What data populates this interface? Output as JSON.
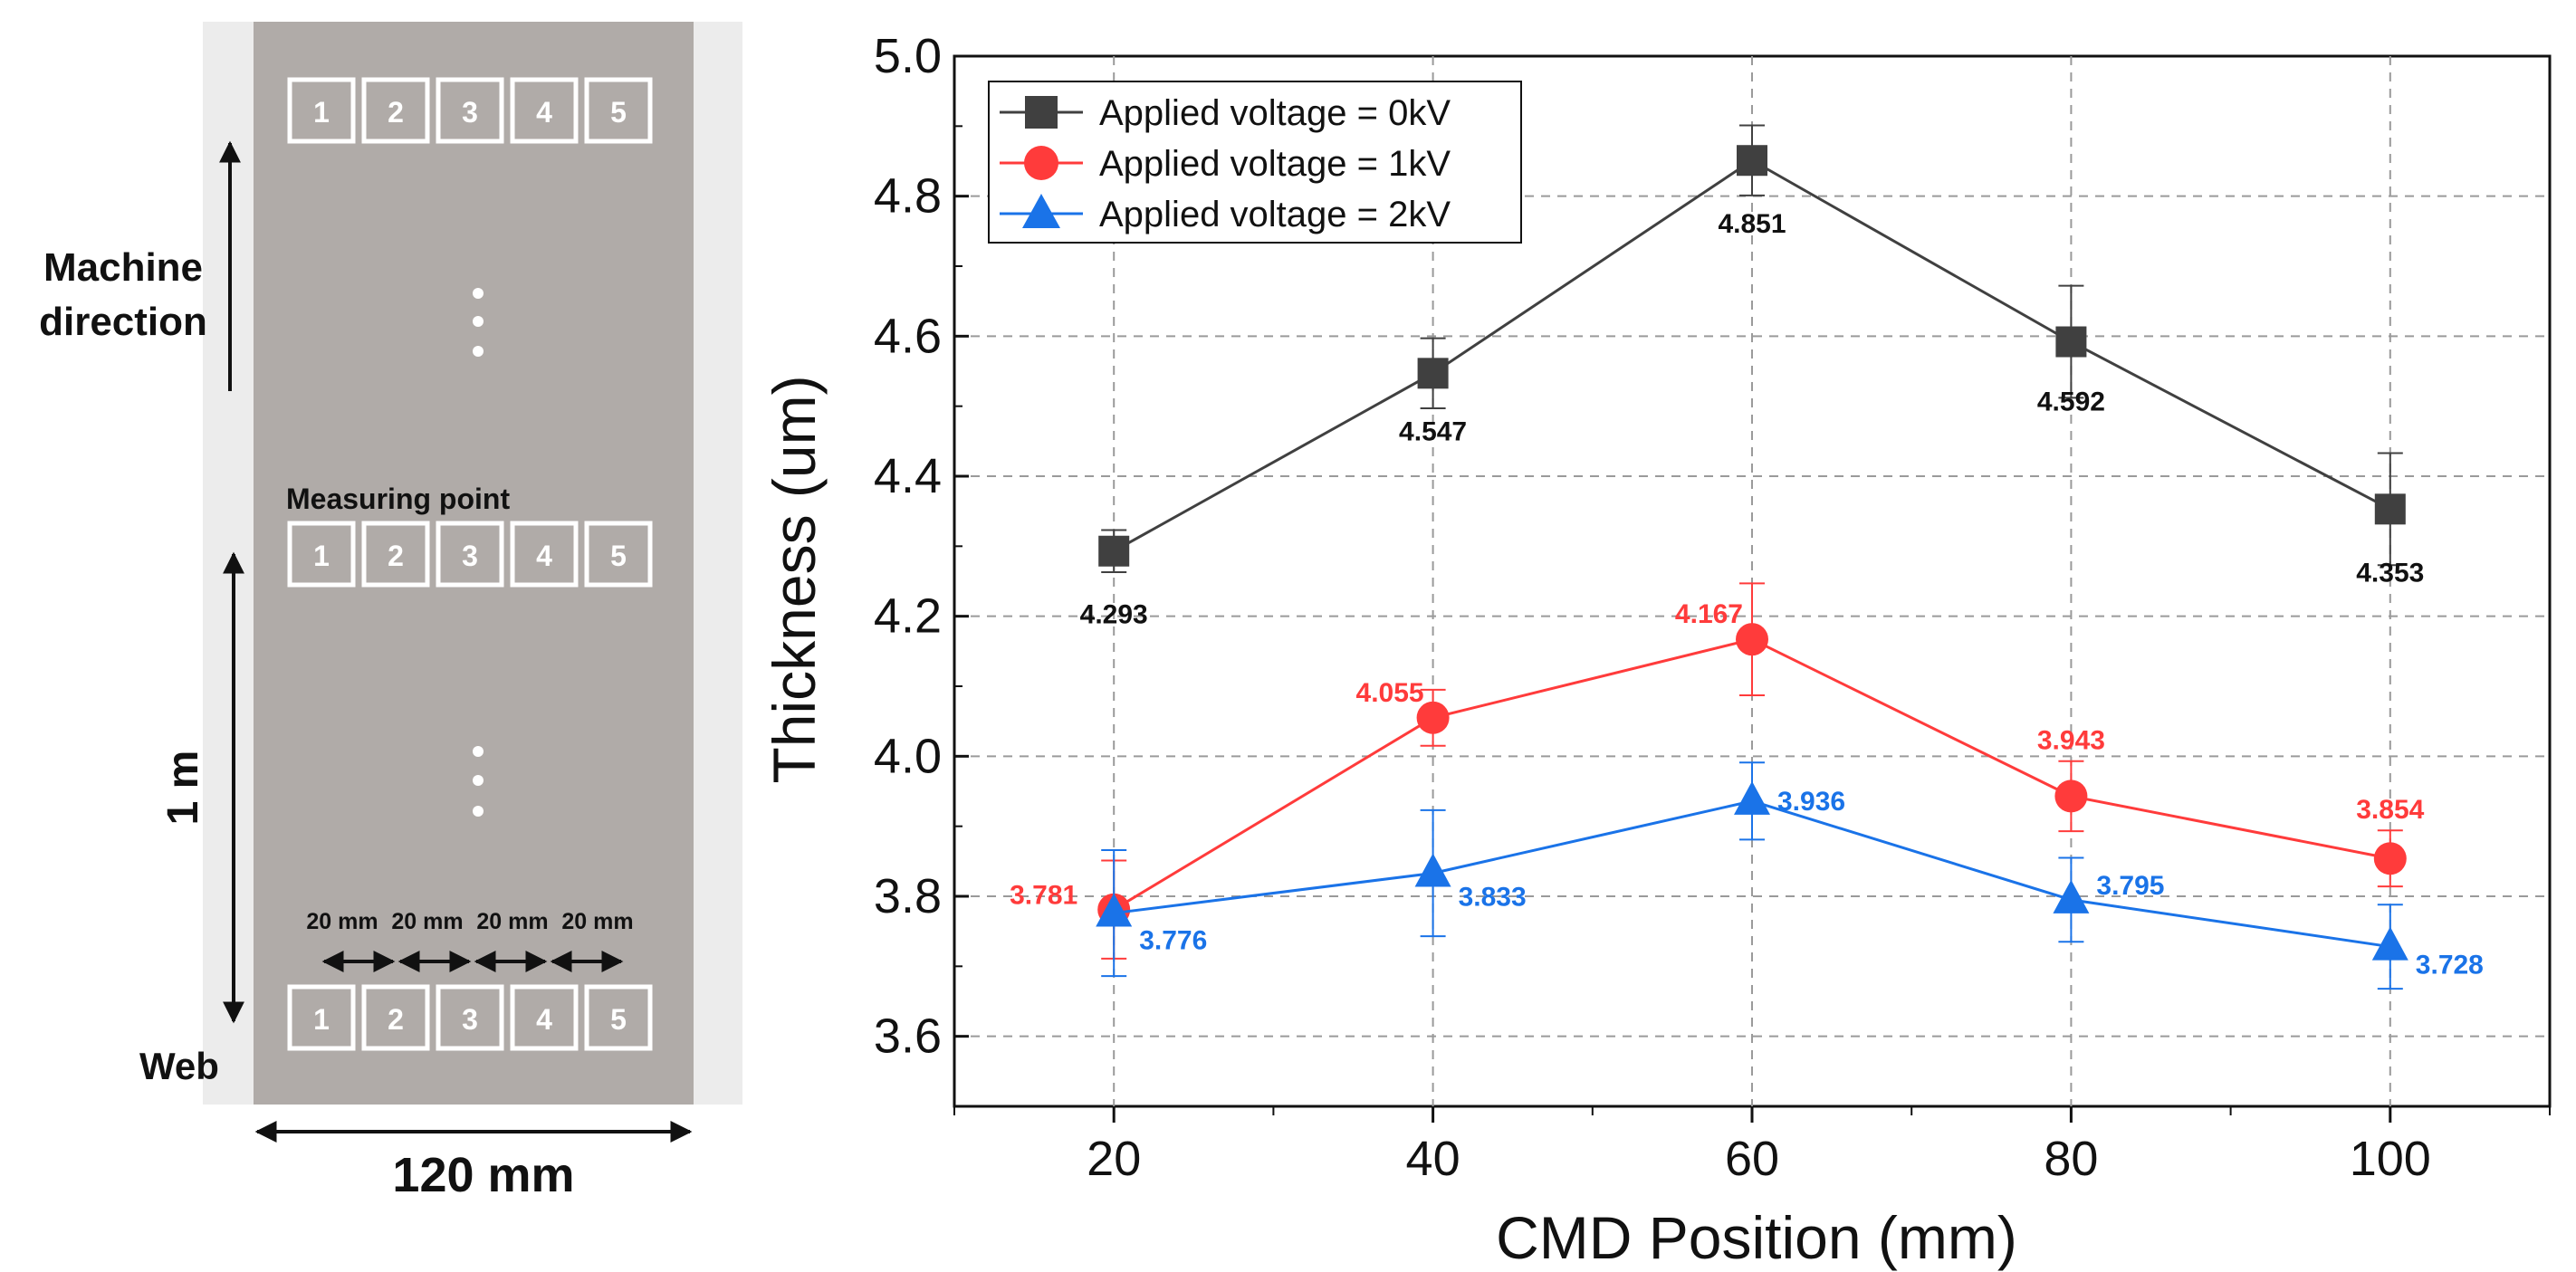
{
  "diagram": {
    "sample_width_label": "120 mm",
    "web_label": "Web",
    "machine_direction_label_line1": "Machine",
    "machine_direction_label_line2": "direction",
    "measuring_point_label": "Measuring point",
    "length_label": "1 m",
    "spacing_labels": [
      "20 mm",
      "20 mm",
      "20 mm",
      "20 mm"
    ],
    "point_numbers": [
      "1",
      "2",
      "3",
      "4",
      "5"
    ]
  },
  "chart_data": {
    "type": "line",
    "title": "",
    "xlabel": "CMD Position (mm)",
    "ylabel": "Thickness (um)",
    "x": [
      20,
      40,
      60,
      80,
      100
    ],
    "xlim": [
      10,
      110
    ],
    "ylim": [
      3.5,
      5.0
    ],
    "xticks": [
      "20",
      "40",
      "60",
      "80",
      "100"
    ],
    "yticks": [
      "3.6",
      "3.8",
      "4.0",
      "4.2",
      "4.4",
      "4.6",
      "4.8",
      "5.0"
    ],
    "grid": true,
    "legend_position": "top-left",
    "series": [
      {
        "name": "Applied voltage = 0kV",
        "color": "#404040",
        "marker": "square",
        "values": [
          4.293,
          4.547,
          4.851,
          4.592,
          4.353
        ],
        "errors": [
          0.03,
          0.05,
          0.05,
          0.08,
          0.08
        ],
        "labels": [
          "4.293",
          "4.547",
          "4.851",
          "4.592",
          "4.353"
        ]
      },
      {
        "name": "Applied voltage = 1kV",
        "color": "#ff3b3b",
        "marker": "circle",
        "values": [
          3.781,
          4.055,
          4.167,
          3.943,
          3.854
        ],
        "errors": [
          0.07,
          0.04,
          0.08,
          0.05,
          0.04
        ],
        "labels": [
          "3.781",
          "4.055",
          "4.167",
          "3.943",
          "3.854"
        ]
      },
      {
        "name": "Applied voltage = 2kV",
        "color": "#1a73e8",
        "marker": "triangle",
        "values": [
          3.776,
          3.833,
          3.936,
          3.795,
          3.728
        ],
        "errors": [
          0.09,
          0.09,
          0.055,
          0.06,
          0.06
        ],
        "labels": [
          "3.776",
          "3.833",
          "3.936",
          "3.795",
          "3.728"
        ]
      }
    ]
  }
}
